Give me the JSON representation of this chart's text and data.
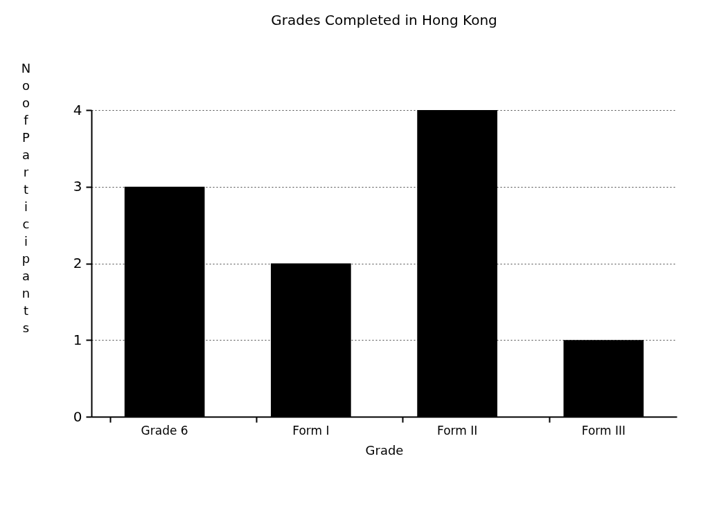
{
  "chart_data": {
    "type": "bar",
    "title": "Grades Completed in Hong Kong",
    "xlabel": "Grade",
    "ylabel": "No of Participants",
    "categories": [
      "Grade 6",
      "Form I",
      "Form II",
      "Form III"
    ],
    "values": [
      3,
      2,
      4,
      1
    ],
    "color": "#000000",
    "ylim": [
      0,
      4
    ],
    "yticks": [
      0,
      1,
      2,
      3,
      4
    ],
    "grid": "y"
  }
}
